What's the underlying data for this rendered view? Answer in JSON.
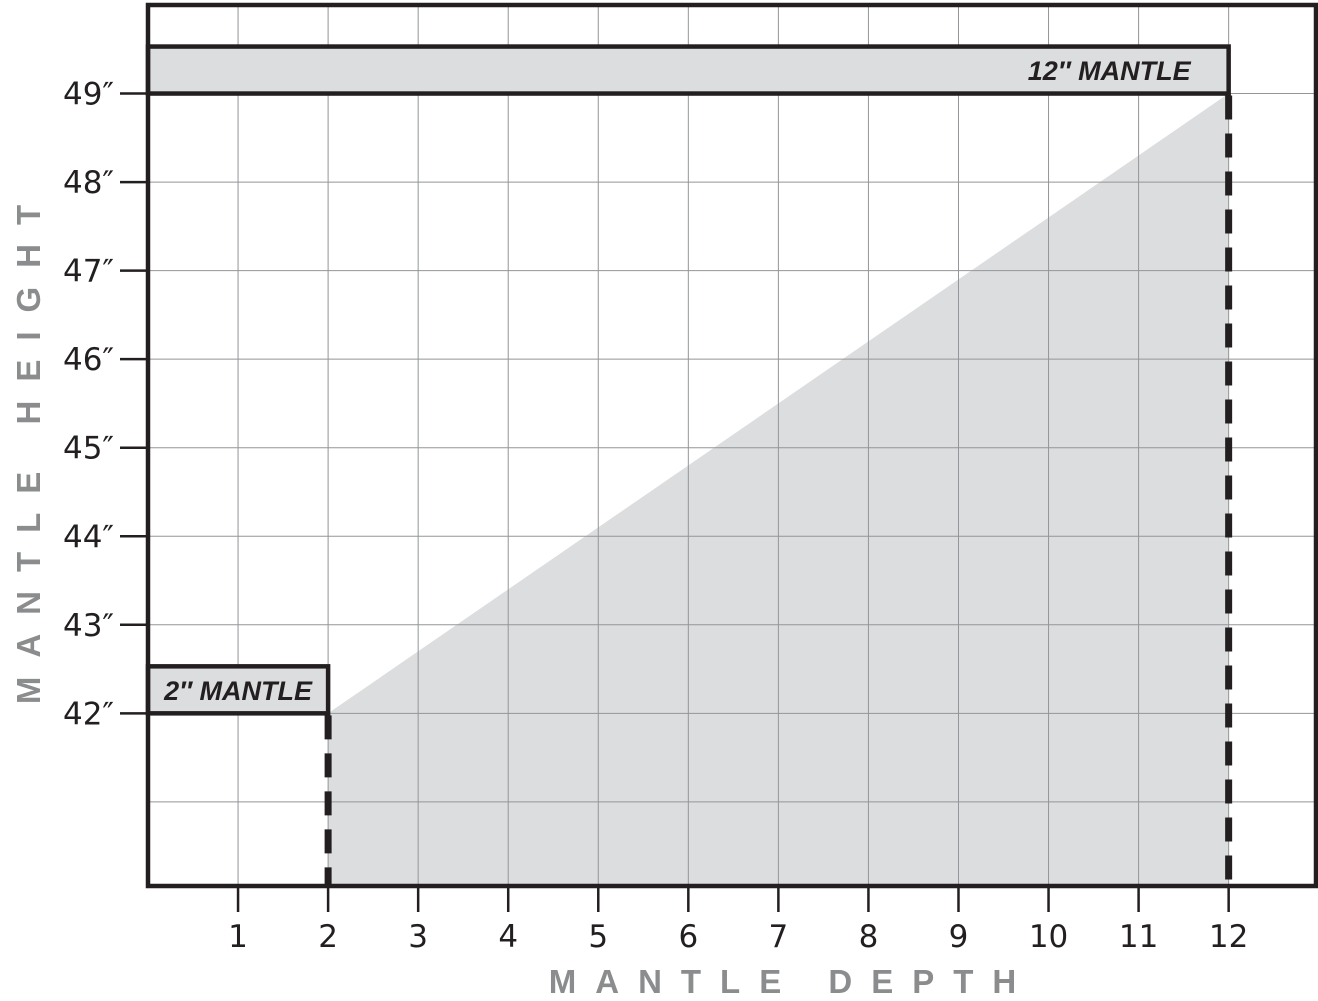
{
  "chart_data": {
    "type": "area",
    "xlabel": "MANTLE DEPTH",
    "ylabel": "MANTLE HEIGHT",
    "xlim": [
      0,
      12.97
    ],
    "ylim": [
      40.05,
      50.0
    ],
    "x_ticks": [
      1,
      2,
      3,
      4,
      5,
      6,
      7,
      8,
      9,
      10,
      11,
      12
    ],
    "x_tick_labels": [
      "1",
      "2",
      "3",
      "4",
      "5",
      "6",
      "7",
      "8",
      "9",
      "10",
      "11",
      "12"
    ],
    "y_ticks": [
      42,
      43,
      44,
      45,
      46,
      47,
      48,
      49
    ],
    "y_tick_labels": [
      "42″",
      "43″",
      "44″",
      "45″",
      "46″",
      "47″",
      "48″",
      "49″"
    ],
    "y_gridlines": [
      41,
      42,
      43,
      44,
      45,
      46,
      47,
      48,
      49
    ],
    "grid": true,
    "region": {
      "points": [
        [
          2,
          40.05
        ],
        [
          2,
          42
        ],
        [
          12,
          49
        ],
        [
          12,
          40.05
        ]
      ],
      "color": "#dcdddf"
    },
    "markers": [
      {
        "depth": 2,
        "height": 42,
        "label": "2″ MANTLE"
      },
      {
        "depth": 12,
        "height": 49,
        "label": "12″ MANTLE"
      }
    ],
    "colors": {
      "frame": "#231f20",
      "grid": "#939598",
      "fill": "#dcdddf",
      "axis_title": "#8a8c8e"
    }
  }
}
